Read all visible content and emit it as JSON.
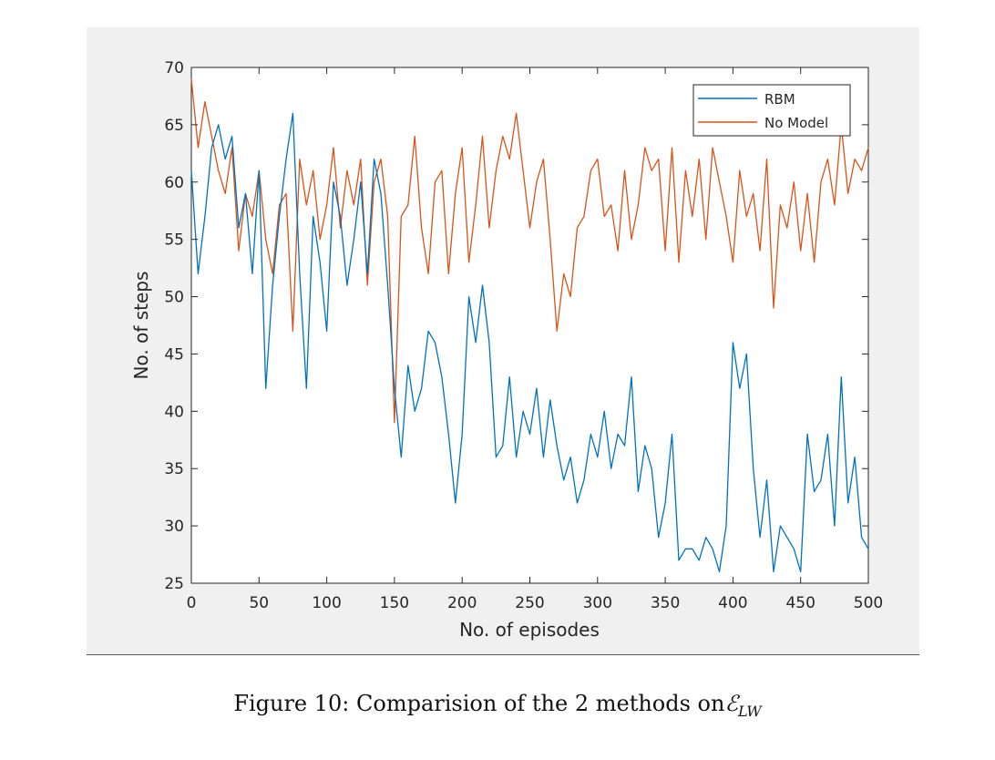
{
  "chart_data": {
    "type": "line",
    "title": "",
    "xlabel": "No. of episodes",
    "ylabel": "No. of steps",
    "xlim": [
      0,
      500
    ],
    "ylim": [
      25,
      70
    ],
    "xticks": [
      0,
      50,
      100,
      150,
      200,
      250,
      300,
      350,
      400,
      450,
      500
    ],
    "yticks": [
      25,
      30,
      35,
      40,
      45,
      50,
      55,
      60,
      65,
      70
    ],
    "grid": false,
    "legend_position": "top-right",
    "series": [
      {
        "name": "RBM",
        "color": "#0072bd",
        "x": [
          0,
          5,
          10,
          15,
          20,
          25,
          30,
          35,
          40,
          45,
          50,
          55,
          60,
          65,
          70,
          75,
          80,
          85,
          90,
          95,
          100,
          105,
          110,
          115,
          120,
          125,
          130,
          135,
          140,
          145,
          150,
          155,
          160,
          165,
          170,
          175,
          180,
          185,
          190,
          195,
          200,
          205,
          210,
          215,
          220,
          225,
          230,
          235,
          240,
          245,
          250,
          255,
          260,
          265,
          270,
          275,
          280,
          285,
          290,
          295,
          300,
          305,
          310,
          315,
          320,
          325,
          330,
          335,
          340,
          345,
          350,
          355,
          360,
          365,
          370,
          375,
          380,
          385,
          390,
          395,
          400,
          405,
          410,
          415,
          420,
          425,
          430,
          435,
          440,
          445,
          450,
          455,
          460,
          465,
          470,
          475,
          480,
          485,
          490,
          495,
          500
        ],
        "values": [
          61,
          52,
          57,
          63,
          65,
          62,
          64,
          56,
          59,
          52,
          61,
          42,
          51,
          57,
          62,
          66,
          52,
          42,
          57,
          53,
          47,
          60,
          57,
          51,
          55,
          60,
          52,
          62,
          59,
          51,
          42,
          36,
          44,
          40,
          42,
          47,
          46,
          43,
          38,
          32,
          38,
          50,
          46,
          51,
          46,
          36,
          37,
          43,
          36,
          40,
          38,
          42,
          36,
          41,
          37,
          34,
          36,
          32,
          34,
          38,
          36,
          40,
          35,
          38,
          37,
          43,
          33,
          37,
          35,
          29,
          32,
          38,
          27,
          28,
          28,
          27,
          29,
          28,
          26,
          30,
          46,
          42,
          45,
          35,
          29,
          34,
          26,
          30,
          29,
          28,
          26,
          38,
          33,
          34,
          38,
          30,
          43,
          32,
          36,
          29,
          28
        ]
      },
      {
        "name": "No Model",
        "color": "#d95319",
        "x": [
          0,
          5,
          10,
          15,
          20,
          25,
          30,
          35,
          40,
          45,
          50,
          55,
          60,
          65,
          70,
          75,
          80,
          85,
          90,
          95,
          100,
          105,
          110,
          115,
          120,
          125,
          130,
          135,
          140,
          145,
          150,
          155,
          160,
          165,
          170,
          175,
          180,
          185,
          190,
          195,
          200,
          205,
          210,
          215,
          220,
          225,
          230,
          235,
          240,
          245,
          250,
          255,
          260,
          265,
          270,
          275,
          280,
          285,
          290,
          295,
          300,
          305,
          310,
          315,
          320,
          325,
          330,
          335,
          340,
          345,
          350,
          355,
          360,
          365,
          370,
          375,
          380,
          385,
          390,
          395,
          400,
          405,
          410,
          415,
          420,
          425,
          430,
          435,
          440,
          445,
          450,
          455,
          460,
          465,
          470,
          475,
          480,
          485,
          490,
          495,
          500
        ],
        "values": [
          69,
          63,
          67,
          64,
          61,
          59,
          63,
          54,
          59,
          57,
          61,
          55,
          52,
          58,
          59,
          47,
          62,
          58,
          61,
          55,
          58,
          63,
          56,
          61,
          58,
          62,
          51,
          60,
          62,
          57,
          39,
          57,
          58,
          64,
          56,
          52,
          60,
          61,
          52,
          59,
          63,
          53,
          58,
          64,
          56,
          61,
          64,
          62,
          66,
          61,
          56,
          60,
          62,
          55,
          47,
          52,
          50,
          56,
          57,
          61,
          62,
          57,
          58,
          54,
          61,
          55,
          58,
          63,
          61,
          62,
          54,
          63,
          53,
          61,
          57,
          62,
          55,
          63,
          60,
          57,
          53,
          61,
          57,
          59,
          54,
          62,
          49,
          58,
          56,
          60,
          54,
          59,
          53,
          60,
          62,
          58,
          65,
          59,
          62,
          61,
          63
        ]
      }
    ]
  },
  "caption": {
    "prefix": "Figure 10:  Comparision of the 2 methods on",
    "symbol": "ℰ",
    "subscript": "LW"
  }
}
